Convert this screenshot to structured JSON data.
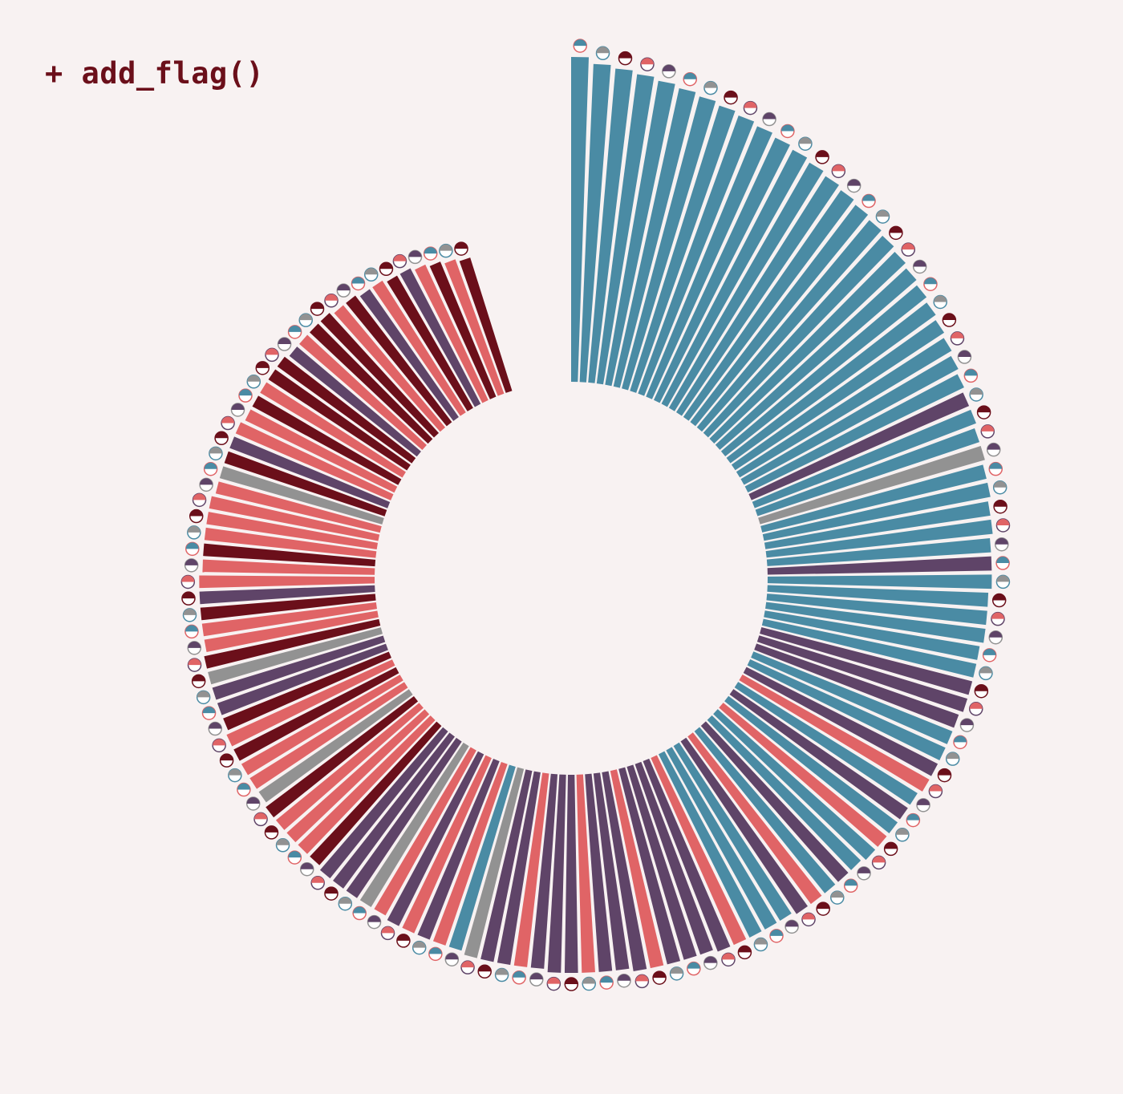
{
  "header": {
    "title": "+ add_flag()"
  },
  "colors": {
    "background": "#f8f2f2",
    "title": "#6b0f1a",
    "teal": "#4a8ba4",
    "purple": "#5f4468",
    "gray": "#929292",
    "coral": "#e06466",
    "maroon": "#6b0f1a"
  },
  "chart_data": {
    "type": "radial-bar",
    "title": "",
    "value_unit": "relative",
    "legend": "none",
    "grid": false,
    "bars": [
      {
        "value": 100,
        "color": "teal"
      },
      {
        "value": 98,
        "color": "teal"
      },
      {
        "value": 97,
        "color": "teal"
      },
      {
        "value": 96,
        "color": "teal"
      },
      {
        "value": 95,
        "color": "teal"
      },
      {
        "value": 94,
        "color": "teal"
      },
      {
        "value": 93,
        "color": "teal"
      },
      {
        "value": 92,
        "color": "teal"
      },
      {
        "value": 91,
        "color": "teal"
      },
      {
        "value": 90,
        "color": "teal"
      },
      {
        "value": 89,
        "color": "teal"
      },
      {
        "value": 88,
        "color": "teal"
      },
      {
        "value": 87,
        "color": "teal"
      },
      {
        "value": 86,
        "color": "teal"
      },
      {
        "value": 85,
        "color": "teal"
      },
      {
        "value": 84,
        "color": "teal"
      },
      {
        "value": 83,
        "color": "teal"
      },
      {
        "value": 82,
        "color": "teal"
      },
      {
        "value": 81,
        "color": "teal"
      },
      {
        "value": 80,
        "color": "teal"
      },
      {
        "value": 79,
        "color": "teal"
      },
      {
        "value": 78,
        "color": "teal"
      },
      {
        "value": 77,
        "color": "teal"
      },
      {
        "value": 76,
        "color": "teal"
      },
      {
        "value": 75,
        "color": "teal"
      },
      {
        "value": 74,
        "color": "teal"
      },
      {
        "value": 73,
        "color": "purple"
      },
      {
        "value": 73,
        "color": "teal"
      },
      {
        "value": 72,
        "color": "teal"
      },
      {
        "value": 72,
        "color": "gray"
      },
      {
        "value": 71,
        "color": "teal"
      },
      {
        "value": 71,
        "color": "teal"
      },
      {
        "value": 70,
        "color": "teal"
      },
      {
        "value": 70,
        "color": "teal"
      },
      {
        "value": 69,
        "color": "teal"
      },
      {
        "value": 69,
        "color": "purple"
      },
      {
        "value": 69,
        "color": "teal"
      },
      {
        "value": 68,
        "color": "teal"
      },
      {
        "value": 68,
        "color": "teal"
      },
      {
        "value": 68,
        "color": "teal"
      },
      {
        "value": 67,
        "color": "teal"
      },
      {
        "value": 67,
        "color": "teal"
      },
      {
        "value": 67,
        "color": "purple"
      },
      {
        "value": 67,
        "color": "purple"
      },
      {
        "value": 66,
        "color": "purple"
      },
      {
        "value": 66,
        "color": "teal"
      },
      {
        "value": 66,
        "color": "teal"
      },
      {
        "value": 66,
        "color": "purple"
      },
      {
        "value": 66,
        "color": "coral"
      },
      {
        "value": 65,
        "color": "teal"
      },
      {
        "value": 65,
        "color": "purple"
      },
      {
        "value": 65,
        "color": "teal"
      },
      {
        "value": 65,
        "color": "coral"
      },
      {
        "value": 65,
        "color": "teal"
      },
      {
        "value": 64,
        "color": "teal"
      },
      {
        "value": 64,
        "color": "purple"
      },
      {
        "value": 64,
        "color": "teal"
      },
      {
        "value": 64,
        "color": "coral"
      },
      {
        "value": 64,
        "color": "purple"
      },
      {
        "value": 63,
        "color": "teal"
      },
      {
        "value": 63,
        "color": "teal"
      },
      {
        "value": 63,
        "color": "teal"
      },
      {
        "value": 63,
        "color": "coral"
      },
      {
        "value": 63,
        "color": "purple"
      },
      {
        "value": 62,
        "color": "purple"
      },
      {
        "value": 62,
        "color": "purple"
      },
      {
        "value": 62,
        "color": "purple"
      },
      {
        "value": 62,
        "color": "coral"
      },
      {
        "value": 62,
        "color": "purple"
      },
      {
        "value": 61,
        "color": "purple"
      },
      {
        "value": 61,
        "color": "purple"
      },
      {
        "value": 61,
        "color": "coral"
      },
      {
        "value": 61,
        "color": "purple"
      },
      {
        "value": 61,
        "color": "purple"
      },
      {
        "value": 60,
        "color": "purple"
      },
      {
        "value": 60,
        "color": "coral"
      },
      {
        "value": 60,
        "color": "purple"
      },
      {
        "value": 60,
        "color": "purple"
      },
      {
        "value": 60,
        "color": "gray"
      },
      {
        "value": 59,
        "color": "teal"
      },
      {
        "value": 59,
        "color": "coral"
      },
      {
        "value": 59,
        "color": "purple"
      },
      {
        "value": 59,
        "color": "coral"
      },
      {
        "value": 59,
        "color": "purple"
      },
      {
        "value": 58,
        "color": "coral"
      },
      {
        "value": 58,
        "color": "gray"
      },
      {
        "value": 58,
        "color": "purple"
      },
      {
        "value": 58,
        "color": "purple"
      },
      {
        "value": 58,
        "color": "purple"
      },
      {
        "value": 57,
        "color": "maroon"
      },
      {
        "value": 57,
        "color": "coral"
      },
      {
        "value": 57,
        "color": "coral"
      },
      {
        "value": 57,
        "color": "coral"
      },
      {
        "value": 57,
        "color": "maroon"
      },
      {
        "value": 56,
        "color": "gray"
      },
      {
        "value": 56,
        "color": "coral"
      },
      {
        "value": 56,
        "color": "coral"
      },
      {
        "value": 56,
        "color": "maroon"
      },
      {
        "value": 56,
        "color": "coral"
      },
      {
        "value": 55,
        "color": "maroon"
      },
      {
        "value": 55,
        "color": "purple"
      },
      {
        "value": 55,
        "color": "purple"
      },
      {
        "value": 55,
        "color": "gray"
      },
      {
        "value": 55,
        "color": "maroon"
      },
      {
        "value": 54,
        "color": "coral"
      },
      {
        "value": 54,
        "color": "coral"
      },
      {
        "value": 54,
        "color": "maroon"
      },
      {
        "value": 54,
        "color": "purple"
      },
      {
        "value": 54,
        "color": "coral"
      },
      {
        "value": 53,
        "color": "coral"
      },
      {
        "value": 53,
        "color": "maroon"
      },
      {
        "value": 53,
        "color": "coral"
      },
      {
        "value": 53,
        "color": "coral"
      },
      {
        "value": 53,
        "color": "coral"
      },
      {
        "value": 52,
        "color": "coral"
      },
      {
        "value": 52,
        "color": "gray"
      },
      {
        "value": 52,
        "color": "maroon"
      },
      {
        "value": 52,
        "color": "purple"
      },
      {
        "value": 52,
        "color": "coral"
      },
      {
        "value": 51,
        "color": "coral"
      },
      {
        "value": 51,
        "color": "maroon"
      },
      {
        "value": 51,
        "color": "coral"
      },
      {
        "value": 51,
        "color": "maroon"
      },
      {
        "value": 51,
        "color": "maroon"
      },
      {
        "value": 50,
        "color": "purple"
      },
      {
        "value": 50,
        "color": "coral"
      },
      {
        "value": 50,
        "color": "maroon"
      },
      {
        "value": 50,
        "color": "maroon"
      },
      {
        "value": 49,
        "color": "coral"
      },
      {
        "value": 49,
        "color": "maroon"
      },
      {
        "value": 48,
        "color": "purple"
      },
      {
        "value": 48,
        "color": "coral"
      },
      {
        "value": 47,
        "color": "maroon"
      },
      {
        "value": 47,
        "color": "purple"
      },
      {
        "value": 46,
        "color": "coral"
      },
      {
        "value": 45,
        "color": "maroon"
      },
      {
        "value": 44,
        "color": "coral"
      },
      {
        "value": 43,
        "color": "maroon"
      }
    ]
  }
}
